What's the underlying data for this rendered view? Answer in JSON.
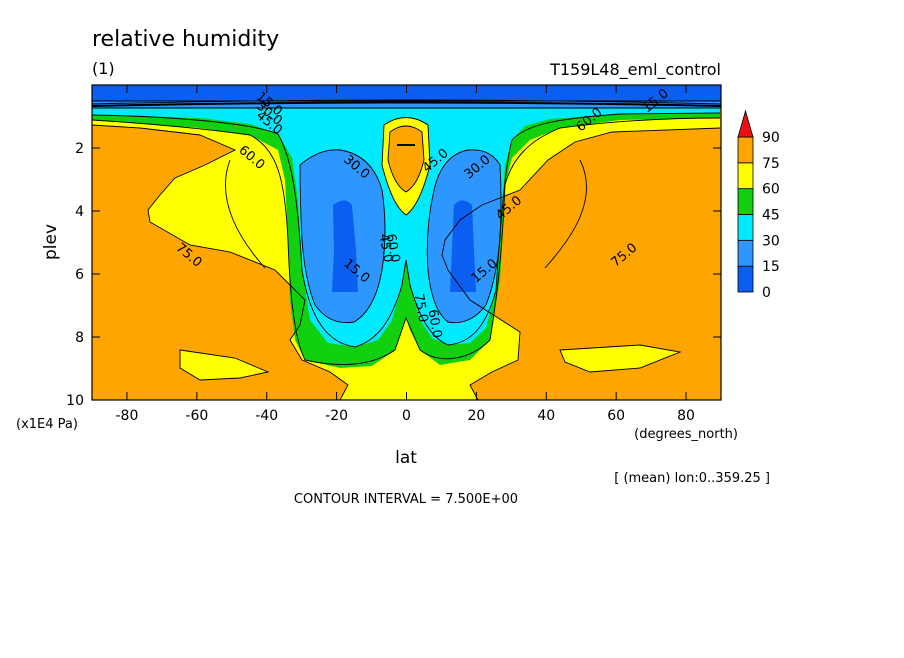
{
  "chart_data": {
    "type": "heatmap",
    "title": "relative humidity",
    "subtitle": "(1)",
    "dataset": "T159L48_eml_control",
    "xlabel": "lat",
    "x_unit": "(degrees_north)",
    "ylabel": "plev",
    "y_unit": "(x1E4 Pa)",
    "xlim": [
      -90,
      90
    ],
    "ylim": [
      10,
      0
    ],
    "x_ticks": [
      -80,
      -60,
      -40,
      -20,
      0,
      20,
      40,
      60,
      80
    ],
    "x_tick_labels": [
      "-80",
      "-60",
      "-40",
      "-20",
      "0",
      "20",
      "40",
      "60",
      "80"
    ],
    "y_ticks": [
      10,
      8,
      6,
      4,
      2
    ],
    "y_tick_labels": [
      "10",
      "8",
      "6",
      "4",
      "2"
    ],
    "note": "[ (mean) lon:0..359.25 ]",
    "contour_interval_text": "CONTOUR INTERVAL = 7.500E+00",
    "levels": [
      0,
      15,
      30,
      45,
      60,
      75,
      90
    ],
    "colorbar": [
      {
        "from": 0,
        "to": 15,
        "color": "#0a5ef2"
      },
      {
        "from": 15,
        "to": 30,
        "color": "#2e96ff"
      },
      {
        "from": 30,
        "to": 45,
        "color": "#00eaff"
      },
      {
        "from": 45,
        "to": 60,
        "color": "#11d10e"
      },
      {
        "from": 60,
        "to": 75,
        "color": "#ffff00"
      },
      {
        "from": 75,
        "to": 90,
        "color": "#ffa500"
      },
      {
        "from": 90,
        "to": null,
        "color": "#ee1111"
      }
    ],
    "contour_labels": [
      {
        "text": "15.0",
        "lat": -40,
        "plev": 0.7
      },
      {
        "text": "30.0",
        "lat": -40,
        "plev": 1.0
      },
      {
        "text": "45.0",
        "lat": -40,
        "plev": 1.3
      },
      {
        "text": "60.0",
        "lat": -45,
        "plev": 2.4
      },
      {
        "text": "75.0",
        "lat": -63,
        "plev": 5.5
      },
      {
        "text": "30.0",
        "lat": -15,
        "plev": 2.7
      },
      {
        "text": "15.0",
        "lat": -15,
        "plev": 6.0
      },
      {
        "text": "45.0",
        "lat": -7,
        "plev": 5.2
      },
      {
        "text": "60.0",
        "lat": -5,
        "plev": 5.2
      },
      {
        "text": "45.0",
        "lat": 9,
        "plev": 2.5
      },
      {
        "text": "30.0",
        "lat": 21,
        "plev": 2.7
      },
      {
        "text": "15.0",
        "lat": 23,
        "plev": 6.0
      },
      {
        "text": "45.0",
        "lat": 30,
        "plev": 4.0
      },
      {
        "text": "75.0",
        "lat": 3,
        "plev": 7.1
      },
      {
        "text": "60.0",
        "lat": 7,
        "plev": 7.6
      },
      {
        "text": "60.0",
        "lat": 53,
        "plev": 1.2
      },
      {
        "text": "75.0",
        "lat": 63,
        "plev": 5.5
      },
      {
        "text": "15.0",
        "lat": 72,
        "plev": 0.6
      }
    ]
  }
}
